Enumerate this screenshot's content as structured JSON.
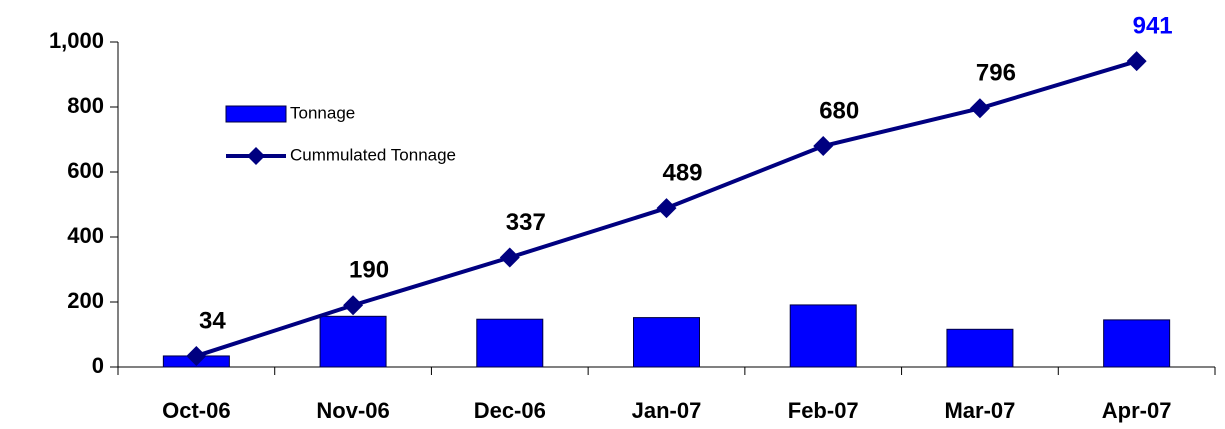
{
  "chart_data": {
    "type": "bar_line",
    "categories": [
      "Oct-06",
      "Nov-06",
      "Dec-06",
      "Jan-07",
      "Feb-07",
      "Mar-07",
      "Apr-07"
    ],
    "series": [
      {
        "name": "Tonnage",
        "type": "bar",
        "color": "#0000ff",
        "values": [
          34,
          156,
          147,
          152,
          191,
          116,
          145
        ]
      },
      {
        "name": "Cummulated Tonnage",
        "type": "line",
        "color": "#000080",
        "values": [
          34,
          190,
          337,
          489,
          680,
          796,
          941
        ]
      }
    ],
    "ylim": [
      0,
      1000
    ],
    "yticks": [
      0,
      200,
      400,
      600,
      800,
      {
        "value": 1000,
        "label": "1,000"
      }
    ],
    "grid": false,
    "legend": "upper left"
  }
}
